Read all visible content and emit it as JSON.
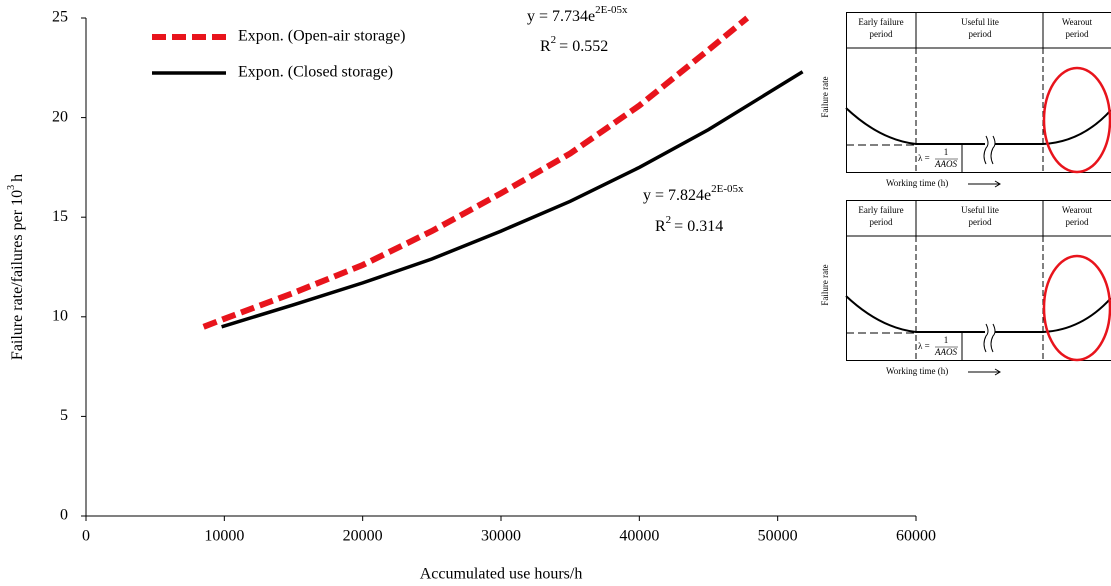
{
  "chart_data": {
    "type": "line",
    "xlabel": "Accumulated use hours/h",
    "ylabel": "Failure rate/failures per 10",
    "ylabel_sup": "3",
    "ylabel_tail": "h",
    "xlim": [
      0,
      60000
    ],
    "xticks": [
      0,
      10000,
      20000,
      30000,
      40000,
      50000,
      60000
    ],
    "ylim": [
      0,
      25
    ],
    "yticks": [
      0,
      5,
      10,
      15,
      20,
      25
    ],
    "legend": "top-left",
    "series": [
      {
        "name": "Expon. (Open-air storage)",
        "color": "#e8141c",
        "dashed": true,
        "x": [
          8500,
          10000,
          15000,
          20000,
          25000,
          30000,
          35000,
          40000,
          45000,
          47800
        ],
        "values": [
          9.5,
          9.9,
          11.2,
          12.6,
          14.3,
          16.2,
          18.2,
          20.6,
          23.4,
          25
        ]
      },
      {
        "name": "Expon. (Closed storage)",
        "color": "#000000",
        "dashed": false,
        "x": [
          9800,
          15000,
          20000,
          25000,
          30000,
          35000,
          40000,
          45000,
          51800
        ],
        "values": [
          9.5,
          10.6,
          11.7,
          12.9,
          14.3,
          15.8,
          17.5,
          19.4,
          22.3
        ]
      }
    ],
    "annotations": [
      {
        "base": "y = 7.734e",
        "sup": "2E-05x"
      },
      {
        "base": "R",
        "sup": "2",
        "tail": "= 0.552"
      },
      {
        "base": "y = 7.824e",
        "sup": "2E-05x"
      },
      {
        "base": "R",
        "sup": "2",
        "tail": "= 0.314"
      }
    ]
  },
  "insets": [
    {
      "early": "Early failure",
      "early2": "period",
      "useful": "Useful lite",
      "useful2": "period",
      "wear": "Wearout",
      "wear2": "period",
      "ylabel": "Failure rate",
      "xlabel": "Working time (h)",
      "lambda": "λ =",
      "num": "1",
      "den": "AAOS"
    },
    {
      "early": "Early failure",
      "early2": "period",
      "useful": "Useful lite",
      "useful2": "period",
      "wear": "Wearout",
      "wear2": "period",
      "ylabel": "Failure rate",
      "xlabel": "Working time (h)",
      "lambda": "λ =",
      "num": "1",
      "den": "AAOS"
    }
  ]
}
